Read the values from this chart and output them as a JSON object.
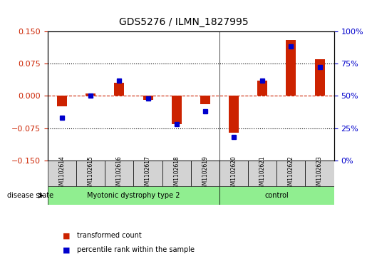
{
  "title": "GDS5276 / ILMN_1827995",
  "samples": [
    "GSM1102614",
    "GSM1102615",
    "GSM1102616",
    "GSM1102617",
    "GSM1102618",
    "GSM1102619",
    "GSM1102620",
    "GSM1102621",
    "GSM1102622",
    "GSM1102623"
  ],
  "transformed_count": [
    -0.025,
    0.005,
    0.03,
    -0.01,
    -0.065,
    -0.02,
    -0.085,
    0.035,
    0.13,
    0.085
  ],
  "percentile_rank": [
    33,
    50,
    62,
    48,
    28,
    38,
    18,
    62,
    88,
    72
  ],
  "disease_groups": [
    {
      "label": "Myotonic dystrophy type 2",
      "start": 0,
      "end": 6,
      "color": "#90EE90"
    },
    {
      "label": "control",
      "start": 6,
      "end": 10,
      "color": "#90EE90"
    }
  ],
  "ylim_left": [
    -0.15,
    0.15
  ],
  "ylim_right": [
    0,
    100
  ],
  "yticks_left": [
    -0.15,
    -0.075,
    0,
    0.075,
    0.15
  ],
  "yticks_right": [
    0,
    25,
    50,
    75,
    100
  ],
  "red_color": "#CC2200",
  "blue_color": "#0000CC",
  "bar_width": 0.35,
  "disease_state_label": "disease state",
  "legend_items": [
    {
      "color": "#CC2200",
      "label": "transformed count"
    },
    {
      "color": "#0000CC",
      "label": "percentile rank within the sample"
    }
  ],
  "bg_color": "#FFFFFF",
  "plot_bg_color": "#FFFFFF",
  "grid_color": "#000000",
  "tick_label_color_left": "#CC2200",
  "tick_label_color_right": "#0000CC"
}
